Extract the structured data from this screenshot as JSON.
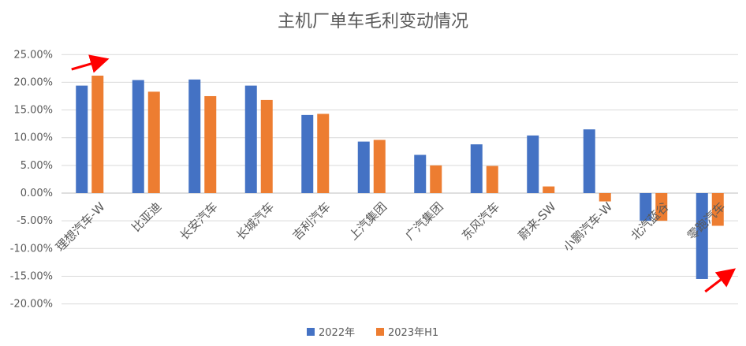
{
  "chart_data": {
    "type": "bar",
    "title": "主机厂单车毛利变动情况",
    "xlabel": "",
    "ylabel": "",
    "ylim": [
      -0.2,
      0.25
    ],
    "ytick_step": 0.05,
    "grid": true,
    "legend_position": "bottom",
    "categories": [
      "理想汽车-W",
      "比亚迪",
      "长安汽车",
      "长城汽车",
      "吉利汽车",
      "上汽集团",
      "广汽集团",
      "东风汽车",
      "蔚来-SW",
      "小鹏汽车-W",
      "北汽蓝谷",
      "零跑汽车"
    ],
    "series": [
      {
        "name": "2022年",
        "color": "#4472C4",
        "values": [
          0.194,
          0.204,
          0.205,
          0.194,
          0.141,
          0.093,
          0.069,
          0.088,
          0.104,
          0.115,
          -0.05,
          -0.155
        ]
      },
      {
        "name": "2023年H1",
        "color": "#ED7D31",
        "values": [
          0.212,
          0.183,
          0.175,
          0.168,
          0.143,
          0.096,
          0.05,
          0.049,
          0.012,
          -0.015,
          -0.05,
          -0.059
        ]
      }
    ],
    "annotations": [
      {
        "type": "arrow",
        "color": "#FF0000",
        "near_category": "理想汽车-W",
        "direction": "up-right"
      },
      {
        "type": "arrow",
        "color": "#FF0000",
        "near_category": "零跑汽车",
        "direction": "up-right"
      }
    ]
  }
}
